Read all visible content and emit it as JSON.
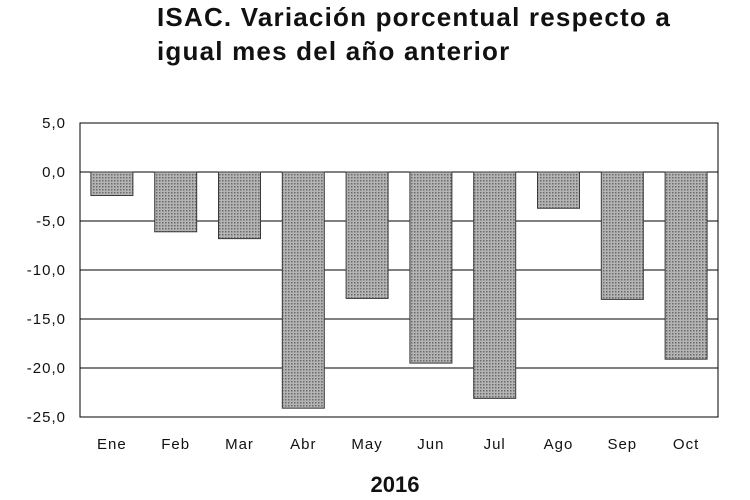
{
  "chart_data": {
    "type": "bar",
    "title_lines": [
      "ISAC. Variación porcentual respecto a",
      "igual mes del año anterior"
    ],
    "categories": [
      "Ene",
      "Feb",
      "Mar",
      "Abr",
      "May",
      "Jun",
      "Jul",
      "Ago",
      "Sep",
      "Oct"
    ],
    "values": [
      -2.4,
      -6.1,
      -6.8,
      -24.1,
      -12.9,
      -19.5,
      -23.1,
      -3.7,
      -13.0,
      -19.1
    ],
    "y_ticks": [
      "5,0",
      "0,0",
      "-5,0",
      "-10,0",
      "-15,0",
      "-20,0",
      "-25,0"
    ],
    "ylim": [
      -25,
      5
    ],
    "xlabel": "2016",
    "ylabel": "",
    "grid": true,
    "colors": {
      "bar_fill": "#a8a8a8",
      "bar_border": "#3a3a3a",
      "grid": "#000000"
    }
  }
}
